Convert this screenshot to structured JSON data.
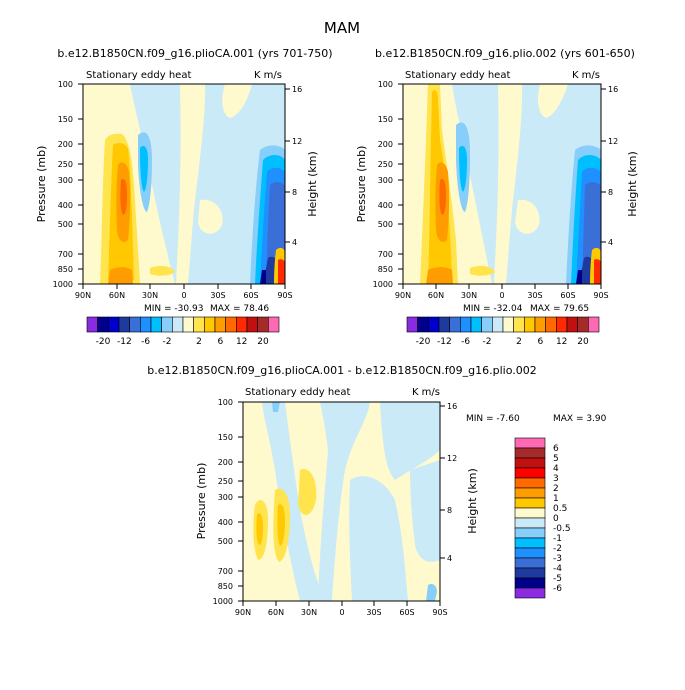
{
  "figure_title": "MAM",
  "chart_data": [
    {
      "type": "heatmap",
      "title": "b.e12.B1850CN.f09_g16.plioCA.001 (yrs 701-750)",
      "subtitle_left": "Stationary eddy heat",
      "subtitle_right": "K m/s",
      "xlabel": "",
      "ylabel": "Pressure (mb)",
      "ylabel_right": "Height (km)",
      "x_ticks": [
        "90N",
        "60N",
        "30N",
        "0",
        "30S",
        "60S",
        "90S"
      ],
      "y_ticks": [
        "100",
        "150",
        "200",
        "250",
        "300",
        "400",
        "500",
        "700",
        "850",
        "1000"
      ],
      "y_ticks_right": [
        "4",
        "8",
        "12",
        "16"
      ],
      "xlim": [
        90,
        -90
      ],
      "ylim": [
        1000,
        100
      ],
      "min_label": "MIN = -30.93",
      "max_label": "MAX = 78.46",
      "min": -30.93,
      "max": 78.46
    },
    {
      "type": "heatmap",
      "title": "b.e12.B1850CN.f09_g16.plio.002 (yrs 601-650)",
      "subtitle_left": "Stationary eddy heat",
      "subtitle_right": "K m/s",
      "xlabel": "",
      "ylabel": "Pressure (mb)",
      "ylabel_right": "Height (km)",
      "x_ticks": [
        "90N",
        "60N",
        "30N",
        "0",
        "30S",
        "60S",
        "90S"
      ],
      "y_ticks": [
        "100",
        "150",
        "200",
        "250",
        "300",
        "400",
        "500",
        "700",
        "850",
        "1000"
      ],
      "y_ticks_right": [
        "4",
        "8",
        "12",
        "16"
      ],
      "xlim": [
        90,
        -90
      ],
      "ylim": [
        1000,
        100
      ],
      "min_label": "MIN = -32.04",
      "max_label": "MAX = 79.65",
      "min": -32.04,
      "max": 79.65
    },
    {
      "type": "heatmap",
      "title": "b.e12.B1850CN.f09_g16.plioCA.001 - b.e12.B1850CN.f09_g16.plio.002",
      "subtitle_left": "Stationary eddy heat",
      "subtitle_right": "K m/s",
      "xlabel": "",
      "ylabel": "Pressure (mb)",
      "ylabel_right": "Height (km)",
      "x_ticks": [
        "90N",
        "60N",
        "30N",
        "0",
        "30S",
        "60S",
        "90S"
      ],
      "y_ticks": [
        "100",
        "150",
        "200",
        "250",
        "300",
        "400",
        "500",
        "700",
        "850",
        "1000"
      ],
      "y_ticks_right": [
        "4",
        "8",
        "12",
        "16"
      ],
      "xlim": [
        90,
        -90
      ],
      "ylim": [
        1000,
        100
      ],
      "min_label": "MIN = -7.60",
      "max_label": "MAX = 3.90",
      "min": -7.6,
      "max": 3.9
    }
  ],
  "top_colorbar": {
    "labels": [
      "-20",
      "-12",
      "-6",
      "-2",
      "2",
      "6",
      "12",
      "20"
    ],
    "colors": [
      "#8a2be2",
      "#00008b",
      "#0000cd",
      "#1e3a9f",
      "#3a6fd8",
      "#1e90ff",
      "#00bfff",
      "#87cefa",
      "#cbeaf8",
      "#fffacd",
      "#ffe44d",
      "#ffc800",
      "#ff9d00",
      "#ff6a00",
      "#ff2a00",
      "#c01010",
      "#a52a2a",
      "#ff69b4"
    ]
  },
  "bottom_colorbar": {
    "labels": [
      "6",
      "5",
      "4",
      "3",
      "2",
      "1",
      "0.5",
      "0",
      "-0.5",
      "-1",
      "-2",
      "-3",
      "-4",
      "-5",
      "-6"
    ],
    "colors": [
      "#ff69b4",
      "#a52a2a",
      "#c01010",
      "#ff0000",
      "#ff6a00",
      "#ff9d00",
      "#ffc800",
      "#fffacd",
      "#cbeaf8",
      "#87cefa",
      "#00bfff",
      "#1e90ff",
      "#3a6fd8",
      "#1e3a9f",
      "#00008b",
      "#8a2be2"
    ]
  }
}
